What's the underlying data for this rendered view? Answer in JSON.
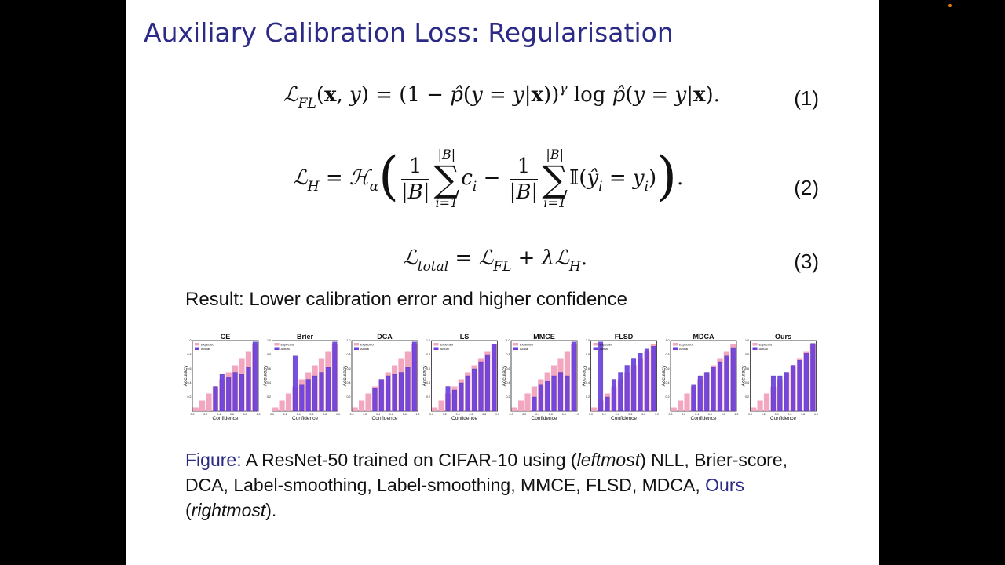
{
  "slide": {
    "title": "Auxiliary Calibration Loss: Regularisation",
    "equations": [
      {
        "number": "(1)"
      },
      {
        "number": "(2)"
      },
      {
        "number": "(3)"
      }
    ],
    "result_text": "Result: Lower calibration error and higher confidence",
    "caption": {
      "label": "Figure:",
      "text_1": " A ResNet-50 trained on CIFAR-10 using (",
      "em_1": "leftmost",
      "text_2": ") NLL, Brier-score, DCA, Label-smoothing, Label-smoothing, MMCE, FLSD, MDCA, ",
      "ours": "Ours",
      "text_3": " (",
      "em_2": "rightmost",
      "text_4": ")."
    }
  },
  "colors": {
    "title": "#2b2b87",
    "expected": "#f2a6c0",
    "actual": "#6a3fe0"
  },
  "chart_data": [
    {
      "type": "bar",
      "title": "CE",
      "xlabel": "Confidence",
      "ylabel": "Accuracy",
      "legend": [
        "Expected",
        "Actual"
      ],
      "ylim": [
        0,
        1
      ],
      "xlim": [
        0,
        1
      ],
      "x_ticks": [
        "0.0",
        "0.2",
        "0.4",
        "0.6",
        "0.8",
        "1.0"
      ],
      "y_ticks": [
        "0.2",
        "0.4",
        "0.6",
        "0.8",
        "1.0"
      ],
      "expected": [
        0.05,
        0.15,
        0.25,
        0.35,
        0.45,
        0.55,
        0.65,
        0.75,
        0.85,
        0.95
      ],
      "actual": [
        0,
        0,
        0,
        0.35,
        0.52,
        0.48,
        0.55,
        0.52,
        0.62,
        0.98
      ]
    },
    {
      "type": "bar",
      "title": "Brier",
      "xlabel": "Confidence",
      "ylabel": "Accuracy",
      "legend": [
        "Expected",
        "Actual"
      ],
      "ylim": [
        0,
        1
      ],
      "xlim": [
        0,
        1
      ],
      "x_ticks": [
        "0.0",
        "0.2",
        "0.4",
        "0.6",
        "0.8",
        "1.0"
      ],
      "y_ticks": [
        "0.2",
        "0.4",
        "0.6",
        "0.8",
        "1.0"
      ],
      "expected": [
        0.05,
        0.15,
        0.25,
        0.35,
        0.45,
        0.55,
        0.65,
        0.75,
        0.85,
        0.95
      ],
      "actual": [
        0,
        0,
        0,
        0.78,
        0.38,
        0.45,
        0.5,
        0.55,
        0.62,
        0.98
      ]
    },
    {
      "type": "bar",
      "title": "DCA",
      "xlabel": "Confidence",
      "ylabel": "Accuracy",
      "legend": [
        "Expected",
        "Actual"
      ],
      "ylim": [
        0,
        1
      ],
      "xlim": [
        0,
        1
      ],
      "x_ticks": [
        "0.0",
        "0.2",
        "0.4",
        "0.6",
        "0.8",
        "1.0"
      ],
      "y_ticks": [
        "0.2",
        "0.4",
        "0.6",
        "0.8",
        "1.0"
      ],
      "expected": [
        0.05,
        0.15,
        0.25,
        0.35,
        0.45,
        0.55,
        0.65,
        0.75,
        0.85,
        0.95
      ],
      "actual": [
        0,
        0,
        0,
        0.32,
        0.45,
        0.5,
        0.52,
        0.55,
        0.62,
        0.98
      ]
    },
    {
      "type": "bar",
      "title": "LS",
      "xlabel": "Confidence",
      "ylabel": "Accuracy",
      "legend": [
        "Expected",
        "Actual"
      ],
      "ylim": [
        0,
        1
      ],
      "xlim": [
        0,
        1
      ],
      "x_ticks": [
        "0.0",
        "0.2",
        "0.4",
        "0.6",
        "0.8",
        "1.0"
      ],
      "y_ticks": [
        "0.2",
        "0.4",
        "0.6",
        "0.8",
        "1.0"
      ],
      "expected": [
        0.05,
        0.15,
        0.25,
        0.35,
        0.45,
        0.55,
        0.65,
        0.75,
        0.85,
        0.95
      ],
      "actual": [
        0,
        0,
        0.35,
        0.3,
        0.4,
        0.5,
        0.6,
        0.7,
        0.8,
        0.95
      ]
    },
    {
      "type": "bar",
      "title": "MMCE",
      "xlabel": "Confidence",
      "ylabel": "Accuracy",
      "legend": [
        "Expected",
        "Actual"
      ],
      "ylim": [
        0,
        1
      ],
      "xlim": [
        0,
        1
      ],
      "x_ticks": [
        "0.0",
        "0.2",
        "0.4",
        "0.6",
        "0.8",
        "1.0"
      ],
      "y_ticks": [
        "0.2",
        "0.4",
        "0.6",
        "0.8",
        "1.0"
      ],
      "expected": [
        0.05,
        0.15,
        0.25,
        0.35,
        0.45,
        0.55,
        0.65,
        0.75,
        0.85,
        0.95
      ],
      "actual": [
        0,
        0,
        0,
        0.2,
        0.38,
        0.42,
        0.5,
        0.55,
        0.5,
        0.98
      ]
    },
    {
      "type": "bar",
      "title": "FLSD",
      "xlabel": "Confidence",
      "ylabel": "Accuracy",
      "legend": [
        "Expected",
        "Actual"
      ],
      "ylim": [
        0,
        1
      ],
      "xlim": [
        0,
        1
      ],
      "x_ticks": [
        "0.0",
        "0.2",
        "0.4",
        "0.6",
        "0.8",
        "1.0"
      ],
      "y_ticks": [
        "0.2",
        "0.4",
        "0.6",
        "0.8",
        "1.0"
      ],
      "expected": [
        0.05,
        0.15,
        0.25,
        0.35,
        0.45,
        0.55,
        0.65,
        0.75,
        0.85,
        0.95
      ],
      "actual": [
        0,
        0.98,
        0.2,
        0.45,
        0.55,
        0.65,
        0.75,
        0.82,
        0.88,
        0.92
      ]
    },
    {
      "type": "bar",
      "title": "MDCA",
      "xlabel": "Confidence",
      "ylabel": "Accuracy",
      "legend": [
        "Expected",
        "Actual"
      ],
      "ylim": [
        0,
        1
      ],
      "xlim": [
        0,
        1
      ],
      "x_ticks": [
        "0.0",
        "0.2",
        "0.4",
        "0.6",
        "0.8",
        "1.0"
      ],
      "y_ticks": [
        "0.2",
        "0.4",
        "0.6",
        "0.8",
        "1.0"
      ],
      "expected": [
        0.05,
        0.15,
        0.25,
        0.35,
        0.45,
        0.55,
        0.65,
        0.75,
        0.85,
        0.95
      ],
      "actual": [
        0,
        0,
        0,
        0.38,
        0.5,
        0.55,
        0.62,
        0.7,
        0.78,
        0.9
      ]
    },
    {
      "type": "bar",
      "title": "Ours",
      "xlabel": "Confidence",
      "ylabel": "Accuracy",
      "legend": [
        "Expected",
        "Actual"
      ],
      "ylim": [
        0,
        1
      ],
      "xlim": [
        0,
        1
      ],
      "x_ticks": [
        "0.0",
        "0.2",
        "0.4",
        "0.6",
        "0.8",
        "1.0"
      ],
      "y_ticks": [
        "0.2",
        "0.4",
        "0.6",
        "0.8",
        "1.0"
      ],
      "expected": [
        0.05,
        0.15,
        0.25,
        0.35,
        0.45,
        0.55,
        0.65,
        0.75,
        0.85,
        0.95
      ],
      "actual": [
        0,
        0,
        0,
        0.5,
        0.5,
        0.55,
        0.65,
        0.72,
        0.82,
        0.96
      ]
    }
  ]
}
